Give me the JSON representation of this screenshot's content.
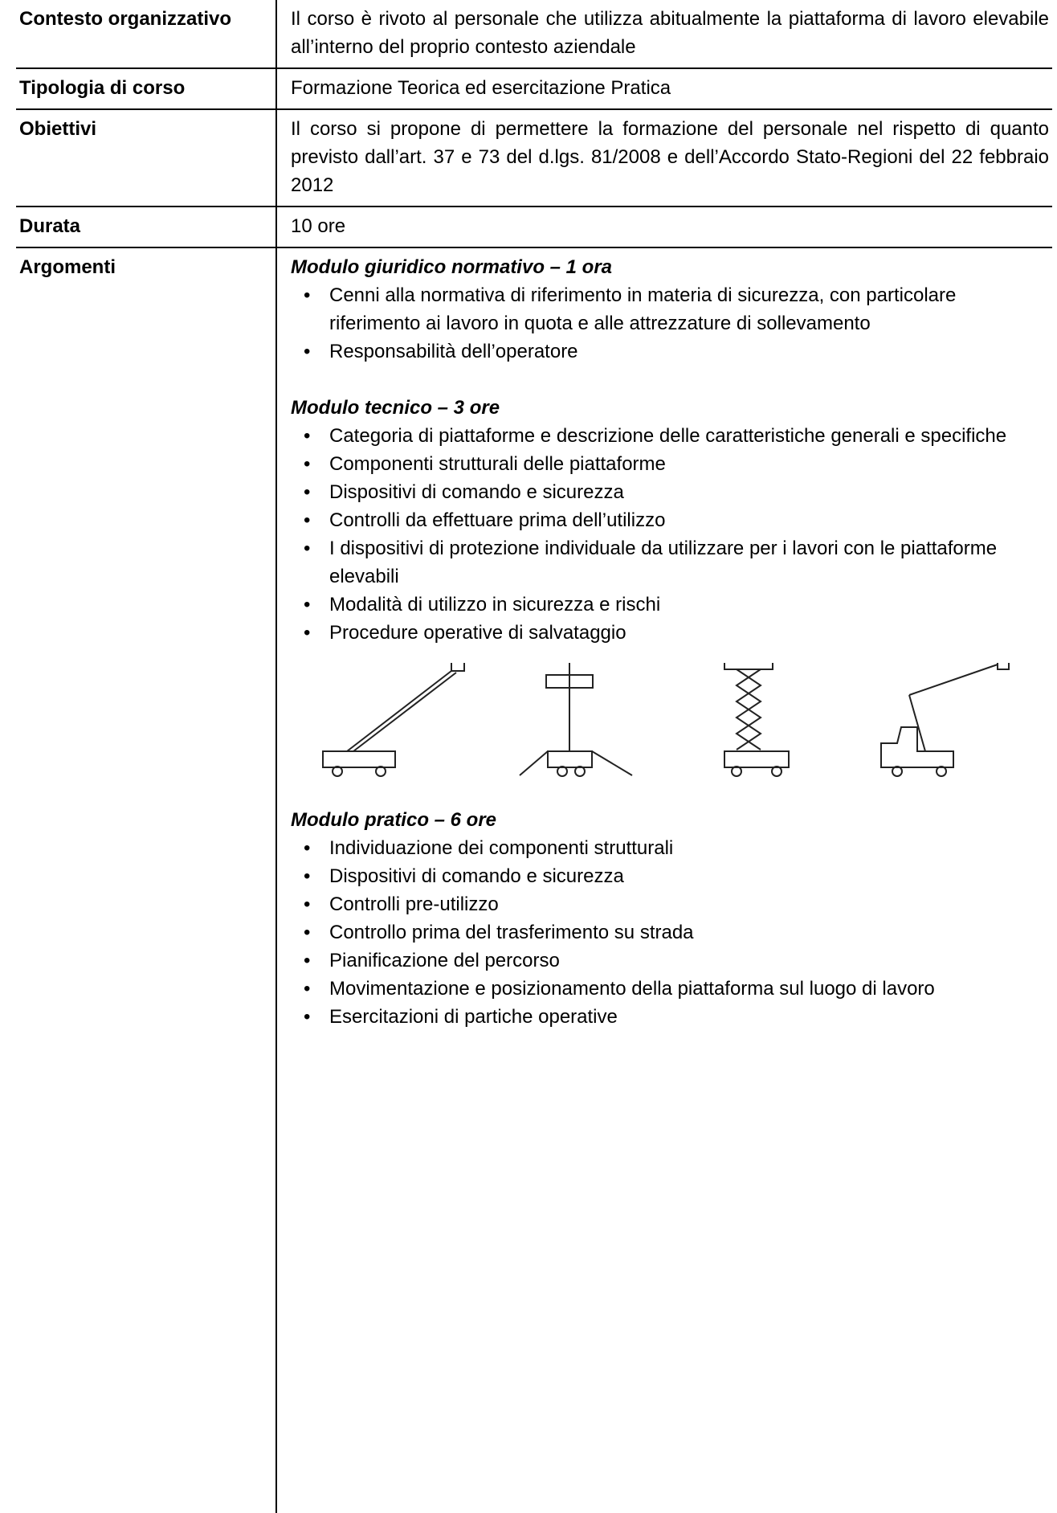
{
  "rows": [
    {
      "label": "Contesto organizzativo",
      "text": "Il corso è rivoto al personale che utilizza abitualmente la piattaforma di lavoro elevabile all’interno del proprio contesto aziendale"
    },
    {
      "label": "Tipologia di corso",
      "text": "Formazione Teorica ed esercitazione Pratica"
    },
    {
      "label": "Obiettivi",
      "text": "Il corso si propone di permettere la formazione del personale nel rispetto di quanto previsto dall’art. 37  e 73 del d.lgs. 81/2008 e dell’Accordo Stato-Regioni del 22 febbraio 2012"
    },
    {
      "label": "Durata",
      "text": "10  ore"
    }
  ],
  "topics": {
    "label": "Argomenti",
    "modules": [
      {
        "title": "Modulo giuridico normativo – 1 ora",
        "items": [
          "Cenni alla normativa di riferimento in materia di sicurezza, con particolare riferimento ai lavoro in quota e alle attrezzature di sollevamento",
          "Responsabilità dell’operatore"
        ]
      },
      {
        "title": "Modulo tecnico – 3 ore",
        "items": [
          "Categoria di piattaforme e descrizione delle caratteristiche generali e specifiche",
          "Componenti strutturali delle piattaforme",
          "Dispositivi di comando e sicurezza",
          "Controlli da effettuare prima dell’utilizzo",
          "I dispositivi di protezione individuale da utilizzare per i lavori con le piattaforme elevabili",
          "Modalità di utilizzo in sicurezza e rischi",
          "Procedure operative di salvataggio"
        ]
      },
      {
        "title": "Modulo pratico – 6 ore",
        "items": [
          "Individuazione dei componenti strutturali",
          "Dispositivi di comando e sicurezza",
          "Controlli pre-utilizzo",
          "Controllo prima del trasferimento su strada",
          "Pianificazione del percorso",
          "Movimentazione e posizionamento della piattaforma sul luogo di lavoro",
          "Esercitazioni di partiche operative"
        ]
      }
    ]
  }
}
